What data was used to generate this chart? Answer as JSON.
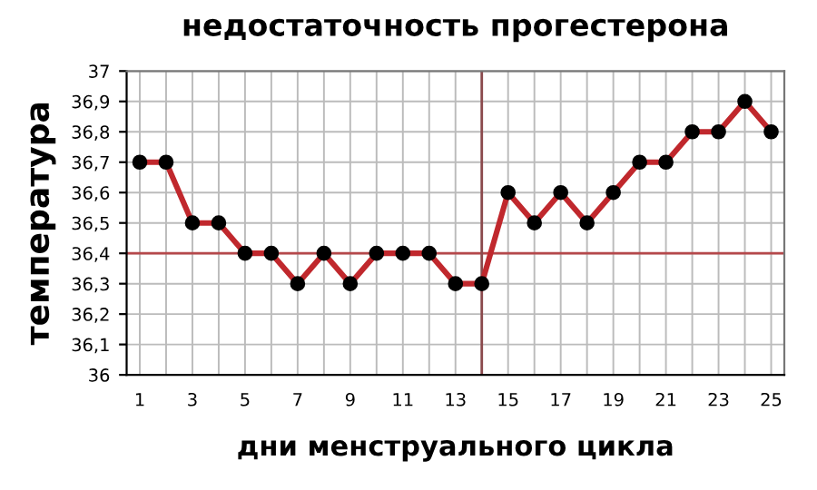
{
  "chart_data": {
    "type": "line",
    "title": "недостаточность прогестерона",
    "xlabel": "дни менструального цикла",
    "ylabel": "температура",
    "x": [
      1,
      2,
      3,
      4,
      5,
      6,
      7,
      8,
      9,
      10,
      11,
      12,
      13,
      14,
      15,
      16,
      17,
      18,
      19,
      20,
      21,
      22,
      23,
      24,
      25
    ],
    "xlim": [
      0.5,
      25.5
    ],
    "xticks": [
      1,
      {
        "value": 2,
        "label": null
      },
      3,
      {
        "value": 4,
        "label": null
      },
      5,
      {
        "value": 6,
        "label": null
      },
      7,
      {
        "value": 8,
        "label": null
      },
      9,
      {
        "value": 10,
        "label": null
      },
      11,
      {
        "value": 12,
        "label": null
      },
      13,
      {
        "value": 14,
        "label": null
      },
      15,
      {
        "value": 16,
        "label": null
      },
      17,
      {
        "value": 18,
        "label": null
      },
      19,
      {
        "value": 20,
        "label": null
      },
      21,
      {
        "value": 22,
        "label": null
      },
      23,
      {
        "value": 24,
        "label": null
      },
      25
    ],
    "series": [
      {
        "color": "#c0282d",
        "values": [
          36.7,
          36.7,
          36.5,
          36.5,
          36.4,
          36.4,
          36.3,
          36.4,
          36.3,
          36.4,
          36.4,
          36.4,
          36.3,
          36.3,
          36.6,
          36.5,
          36.6,
          36.5,
          36.6,
          36.7,
          36.7,
          36.8,
          36.8,
          36.9,
          36.8
        ]
      }
    ],
    "marker": "circle",
    "line_style": "solid",
    "ylim": [
      36,
      37
    ],
    "yticks": [
      {
        "value": 36,
        "label": "36"
      },
      {
        "value": 36.1,
        "label": "36,1"
      },
      {
        "value": 36.2,
        "label": "36,2"
      },
      {
        "value": 36.3,
        "label": "36,3"
      },
      {
        "value": 36.4,
        "label": "36,4"
      },
      {
        "value": 36.5,
        "label": "36,5"
      },
      {
        "value": 36.6,
        "label": "36,6"
      },
      {
        "value": 36.7,
        "label": "36,7"
      },
      {
        "value": 36.8,
        "label": "36,8"
      },
      {
        "value": 36.9,
        "label": "36,9"
      },
      {
        "value": 37,
        "label": "37"
      }
    ],
    "ref_lines": [
      {
        "axis": "y",
        "value": 36.4,
        "color": "#b5484b"
      },
      {
        "axis": "x",
        "value": 14,
        "color": "#8b4a4d"
      }
    ],
    "grid": true
  }
}
